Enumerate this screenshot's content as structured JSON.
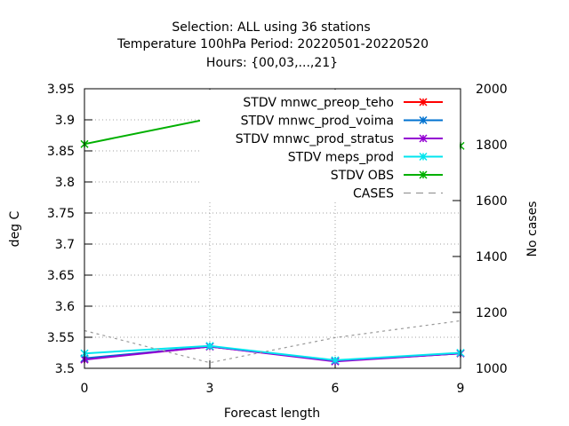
{
  "chart_data": {
    "type": "line",
    "title_lines": [
      "Selection: ALL using    36 stations",
      "Temperature 100hPa   Period: 20220501-20220520",
      "Hours: {00,03,...,21}"
    ],
    "xlabel": "Forecast length",
    "ylabel": "deg C",
    "y2label": "No cases",
    "x": [
      0,
      3,
      6,
      9
    ],
    "xlim": [
      0,
      9
    ],
    "ylim": [
      3.5,
      3.95
    ],
    "y2lim": [
      1000,
      2000
    ],
    "x_ticks": [
      "0",
      "3",
      "6",
      "9"
    ],
    "y_ticks": [
      "3.5",
      "3.55",
      "3.6",
      "3.65",
      "3.7",
      "3.75",
      "3.8",
      "3.85",
      "3.9",
      "3.95"
    ],
    "y2_ticks": [
      "1000",
      "1200",
      "1400",
      "1600",
      "1800",
      "2000"
    ],
    "grid": true,
    "legend_position": "top-right",
    "series": [
      {
        "name": "STDV mnwc_preop_teho",
        "color": "#ff0000",
        "axis": "y",
        "marker": "x",
        "values": [
          3.515,
          3.535,
          3.512,
          3.524
        ]
      },
      {
        "name": "STDV mnwc_prod_voima",
        "color": "#0072d0",
        "axis": "y",
        "marker": "x",
        "values": [
          3.516,
          3.535,
          3.512,
          3.524
        ]
      },
      {
        "name": "STDV mnwc_prod_stratus",
        "color": "#9400d3",
        "axis": "y",
        "marker": "x",
        "values": [
          3.514,
          3.535,
          3.511,
          3.524
        ]
      },
      {
        "name": "STDV meps_prod",
        "color": "#00e5ee",
        "axis": "y",
        "marker": "x",
        "values": [
          3.524,
          3.536,
          3.513,
          3.525
        ]
      },
      {
        "name": "STDV OBS",
        "color": "#00b000",
        "axis": "y",
        "marker": "x",
        "values": [
          3.861,
          3.902,
          3.864,
          3.858
        ]
      },
      {
        "name": "CASES",
        "color": "#999999",
        "axis": "y2",
        "dashed": true,
        "values": [
          1135,
          1020,
          1110,
          1170
        ]
      }
    ]
  }
}
